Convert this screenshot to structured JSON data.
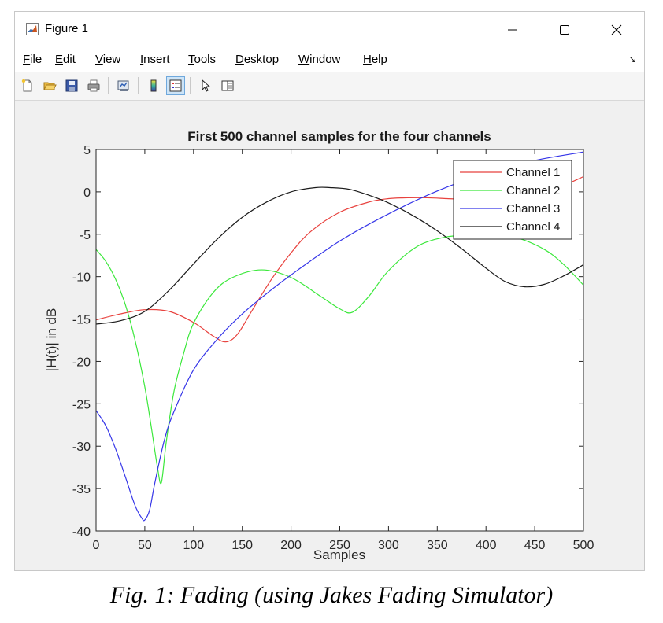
{
  "window": {
    "title": "Figure 1",
    "controls": {
      "minimize": "—",
      "maximize": "☐",
      "close": "✕"
    }
  },
  "menu": [
    "File",
    "Edit",
    "View",
    "Insert",
    "Tools",
    "Desktop",
    "Window",
    "Help"
  ],
  "menu_dock_icon": "dock-arrow-icon",
  "toolbar": [
    {
      "name": "new-figure-icon"
    },
    {
      "name": "open-file-icon"
    },
    {
      "name": "save-icon"
    },
    {
      "name": "print-icon"
    },
    {
      "name": "link-plot-icon"
    },
    {
      "name": "colorbar-icon"
    },
    {
      "name": "legend-icon",
      "active": true
    },
    {
      "name": "edit-plot-arrow-icon"
    },
    {
      "name": "property-editor-icon"
    }
  ],
  "chart_data": {
    "type": "line",
    "title": "First 500 channel samples for the four channels",
    "xlabel": "Samples",
    "ylabel": "|H(t)| in dB",
    "xlim": [
      0,
      500
    ],
    "ylim": [
      -40,
      5
    ],
    "xticks": [
      0,
      50,
      100,
      150,
      200,
      250,
      300,
      350,
      400,
      450,
      500
    ],
    "yticks": [
      5,
      0,
      -5,
      -10,
      -15,
      -20,
      -25,
      -30,
      -35,
      -40
    ],
    "legend_position": "top-right",
    "grid": false,
    "series": [
      {
        "name": "Channel 1",
        "color": "#e8423e",
        "x": [
          0,
          25,
          50,
          75,
          100,
          120,
          133,
          145,
          160,
          180,
          200,
          220,
          250,
          280,
          300,
          320,
          340,
          360,
          380,
          400,
          420,
          450,
          480,
          500
        ],
        "y": [
          -15.1,
          -14.4,
          -13.9,
          -14.1,
          -15.4,
          -17.0,
          -17.7,
          -16.8,
          -14.0,
          -10.3,
          -7.2,
          -4.7,
          -2.4,
          -1.2,
          -0.8,
          -0.7,
          -0.7,
          -0.8,
          -0.9,
          -0.9,
          -0.8,
          -0.3,
          0.8,
          1.8
        ]
      },
      {
        "name": "Channel 2",
        "color": "#3ce83c",
        "x": [
          0,
          10,
          20,
          30,
          40,
          50,
          57,
          63,
          67,
          72,
          80,
          90,
          100,
          120,
          140,
          170,
          200,
          230,
          250,
          263,
          280,
          300,
          330,
          360,
          380,
          400,
          430,
          460,
          480,
          500
        ],
        "y": [
          -6.8,
          -8.2,
          -10.3,
          -13.3,
          -17.5,
          -23.0,
          -28.0,
          -32.5,
          -34.3,
          -29.5,
          -23.5,
          -19.0,
          -15.5,
          -11.9,
          -10.1,
          -9.2,
          -10.1,
          -12.3,
          -13.8,
          -14.2,
          -12.3,
          -9.3,
          -6.4,
          -5.3,
          -5.2,
          -5.3,
          -5.4,
          -6.8,
          -8.6,
          -11.0
        ]
      },
      {
        "name": "Channel 3",
        "color": "#3636e8",
        "x": [
          0,
          10,
          20,
          30,
          40,
          47,
          50,
          55,
          60,
          70,
          80,
          100,
          125,
          150,
          175,
          200,
          250,
          300,
          350,
          400,
          450,
          500
        ],
        "y": [
          -25.8,
          -27.6,
          -30.3,
          -33.6,
          -37.0,
          -38.5,
          -38.7,
          -37.5,
          -34.5,
          -29.3,
          -25.9,
          -21.0,
          -17.3,
          -14.4,
          -12.0,
          -9.8,
          -5.8,
          -2.6,
          0.1,
          2.2,
          3.7,
          4.7
        ]
      },
      {
        "name": "Channel 4",
        "color": "#1a1a1a",
        "x": [
          0,
          25,
          50,
          75,
          100,
          125,
          150,
          175,
          200,
          225,
          240,
          260,
          280,
          300,
          325,
          350,
          375,
          400,
          420,
          440,
          460,
          480,
          500
        ],
        "y": [
          -15.6,
          -15.2,
          -14.1,
          -11.6,
          -8.5,
          -5.5,
          -3.0,
          -1.2,
          0.0,
          0.5,
          0.5,
          0.3,
          -0.4,
          -1.3,
          -2.8,
          -4.6,
          -6.7,
          -9.0,
          -10.6,
          -11.2,
          -10.9,
          -9.9,
          -8.6
        ]
      }
    ]
  },
  "caption": "Fig. 1:  Fading (using Jakes Fading Simulator)"
}
